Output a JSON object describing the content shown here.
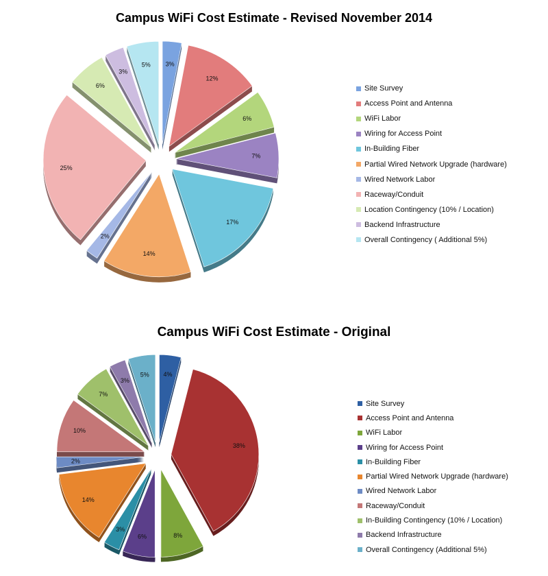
{
  "chart_data": [
    {
      "type": "pie",
      "title": "Campus WiFi Cost Estimate - Revised November 2014",
      "legend_position": "right",
      "slices": [
        {
          "label": "Site Survey",
          "value": 3,
          "display": "3%",
          "color": "#7aa3e0"
        },
        {
          "label": "Access Point and Antenna",
          "value": 12,
          "display": "12%",
          "color": "#e27c7c"
        },
        {
          "label": "WiFi Labor",
          "value": 6,
          "display": "6%",
          "color": "#b3d67c"
        },
        {
          "label": "Wiring for Access Point",
          "value": 7,
          "display": "7%",
          "color": "#9b83c2"
        },
        {
          "label": "In-Building Fiber",
          "value": 17,
          "display": "17%",
          "color": "#6fc6dd"
        },
        {
          "label": "Partial Wired Network Upgrade (hardware)",
          "value": 14,
          "display": "14%",
          "color": "#f3a866"
        },
        {
          "label": "Wired Network Labor",
          "value": 2,
          "display": "2%",
          "color": "#a5b8e6"
        },
        {
          "label": "Raceway/Conduit",
          "value": 25,
          "display": "25%",
          "color": "#f2b3b3"
        },
        {
          "label": "Location Contingency (10% / Location)",
          "value": 6,
          "display": "6%",
          "color": "#d6eab3"
        },
        {
          "label": "Backend Infrastructure",
          "value": 3,
          "display": "3%",
          "color": "#cdbde0"
        },
        {
          "label": "Overall Contingency ( Additional 5%)",
          "value": 5,
          "display": "5%",
          "color": "#b5e6f1"
        }
      ]
    },
    {
      "type": "pie",
      "title": "Campus WiFi Cost Estimate - Original",
      "legend_position": "right",
      "slices": [
        {
          "label": "Site Survey",
          "value": 4,
          "display": "4%",
          "color": "#2e5fa3"
        },
        {
          "label": "Access Point and Antenna",
          "value": 38,
          "display": "38%",
          "color": "#a83232"
        },
        {
          "label": "WiFi Labor",
          "value": 8,
          "display": "8%",
          "color": "#7ea63b"
        },
        {
          "label": "Wiring for Access Point",
          "value": 6,
          "display": "6%",
          "color": "#5b3f8a"
        },
        {
          "label": "In-Building Fiber",
          "value": 3,
          "display": "3%",
          "color": "#2b8fa6"
        },
        {
          "label": "Partial Wired Network Upgrade (hardware)",
          "value": 14,
          "display": "14%",
          "color": "#e8862e"
        },
        {
          "label": "Wired Network Labor",
          "value": 2,
          "display": "2%",
          "color": "#6d8bc4"
        },
        {
          "label": "Raceway/Conduit",
          "value": 10,
          "display": "10%",
          "color": "#c47777"
        },
        {
          "label": "In-Building Contingency (10% / Location)",
          "value": 7,
          "display": "7%",
          "color": "#9fc06b"
        },
        {
          "label": "Backend Infrastructure",
          "value": 3,
          "display": "3%",
          "color": "#8e7bab"
        },
        {
          "label": "Overall Contingency (Additional 5%)",
          "value": 5,
          "display": "5%",
          "color": "#6bb0c9"
        }
      ]
    }
  ]
}
